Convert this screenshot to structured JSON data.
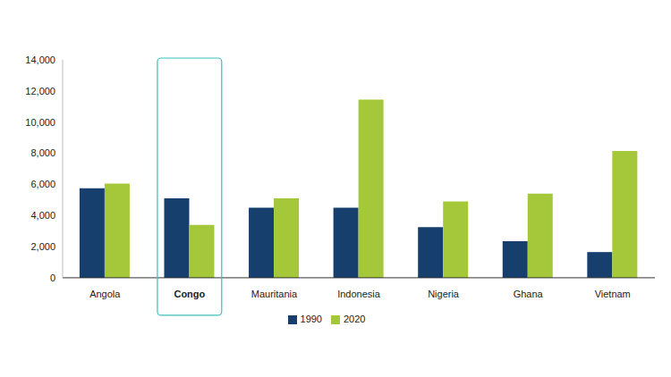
{
  "chart_data": {
    "type": "bar",
    "categories": [
      "Angola",
      "Congo",
      "Mauritania",
      "Indonesia",
      "Nigeria",
      "Ghana",
      "Vietnam"
    ],
    "series": [
      {
        "name": "1990",
        "color": "#163f6e",
        "values": [
          5750,
          5100,
          4500,
          4500,
          3250,
          2350,
          1650
        ]
      },
      {
        "name": "2020",
        "color": "#a5c83a",
        "values": [
          6050,
          3400,
          5100,
          11450,
          4900,
          5400,
          8150
        ]
      }
    ],
    "ylim": [
      0,
      14000
    ],
    "yticks": [
      0,
      {
        "value": 2000,
        "label": "2,000"
      },
      {
        "value": 4000,
        "label": "4,000"
      },
      {
        "value": 6000,
        "label": "6,000"
      },
      {
        "value": 8000,
        "label": "8,000"
      },
      {
        "value": 10000,
        "label": "10,000"
      },
      {
        "value": 12000,
        "label": "12,000"
      },
      {
        "value": 14000,
        "label": "14,000"
      }
    ],
    "grid": false,
    "legend": "bottom"
  }
}
